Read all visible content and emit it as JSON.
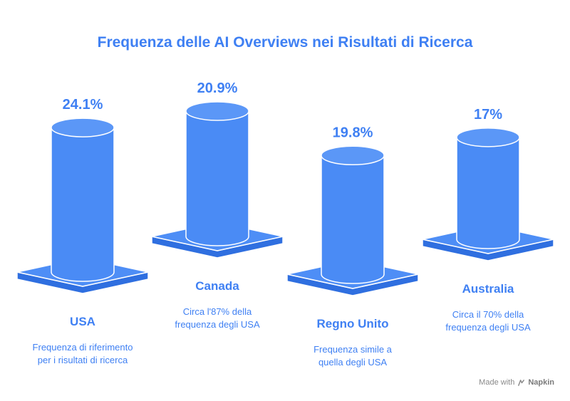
{
  "theme": {
    "accent": "#3f80f3",
    "cylinder_fill": "#4a8bf5",
    "cylinder_top": "#5b97f7",
    "base_top": "#4e8ef6",
    "base_front": "#2f6fe0",
    "stroke": "#ffffff"
  },
  "chart_data": {
    "type": "bar",
    "title": "Frequenza delle AI Overviews nei Risultati di Ricerca",
    "categories": [
      "USA",
      "Canada",
      "Regno Unito",
      "Australia"
    ],
    "values": [
      24.1,
      20.9,
      19.8,
      17
    ],
    "value_labels": [
      "24.1%",
      "20.9%",
      "19.8%",
      "17%"
    ],
    "descriptions": [
      [
        "Frequenza di riferimento",
        "per i risultati di ricerca"
      ],
      [
        "Circa l'87% della",
        "frequenza degli USA"
      ],
      [
        "Frequenza simile a",
        "quella degli USA"
      ],
      [
        "Circa il 70% della",
        "frequenza degli USA"
      ]
    ],
    "unit": "%",
    "bar_style": "3d-cylinder-on-base"
  },
  "watermark": {
    "prefix": "Made with",
    "brand": "Napkin",
    "icon": "napkin-logo-icon"
  }
}
